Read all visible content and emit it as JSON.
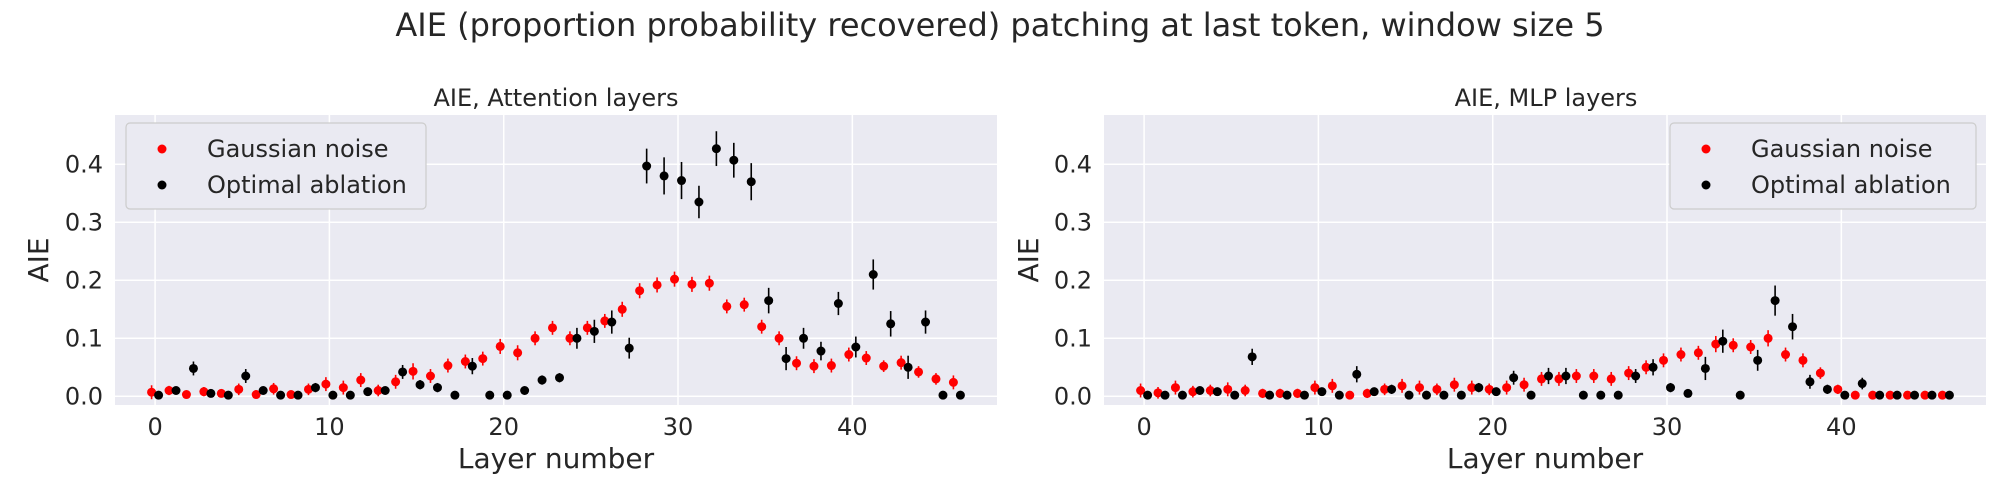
{
  "figure": {
    "suptitle": "AIE (proportion probability recovered) patching at last token, window size 5"
  },
  "colors": {
    "gaussian": "#ff0000",
    "optimal": "#000000",
    "background": "#eaeaf2",
    "grid": "#ffffff"
  },
  "chart_data": [
    {
      "type": "scatter",
      "title": "AIE, Attention layers",
      "xlabel": "Layer number",
      "ylabel": "AIE",
      "xlim": [
        -2.3,
        48.3
      ],
      "ylim": [
        -0.015,
        0.485
      ],
      "xticks": [
        "0",
        "10",
        "20",
        "30",
        "40"
      ],
      "yticks": [
        "0.0",
        "0.1",
        "0.2",
        "0.3",
        "0.4"
      ],
      "grid": true,
      "legend_position": "upper-left",
      "series": [
        {
          "name": "Gaussian noise",
          "color": "#ff0000",
          "x": [
            0,
            1,
            2,
            3,
            4,
            5,
            6,
            7,
            8,
            9,
            10,
            11,
            12,
            13,
            14,
            15,
            16,
            17,
            18,
            19,
            20,
            21,
            22,
            23,
            24,
            25,
            26,
            27,
            28,
            29,
            30,
            31,
            32,
            33,
            34,
            35,
            36,
            37,
            38,
            39,
            40,
            41,
            42,
            43,
            44,
            45,
            46
          ],
          "y": [
            0.007,
            0.01,
            0.003,
            0.008,
            0.005,
            0.012,
            0.003,
            0.013,
            0.003,
            0.012,
            0.021,
            0.015,
            0.028,
            0.01,
            0.025,
            0.043,
            0.035,
            0.053,
            0.06,
            0.065,
            0.086,
            0.075,
            0.1,
            0.118,
            0.1,
            0.118,
            0.13,
            0.15,
            0.182,
            0.192,
            0.202,
            0.193,
            0.195,
            0.155,
            0.158,
            0.12,
            0.1,
            0.057,
            0.052,
            0.053,
            0.072,
            0.066,
            0.052,
            0.058,
            0.042,
            0.03,
            0.024
          ],
          "err": [
            0.012,
            0.008,
            0.006,
            0.008,
            0.006,
            0.01,
            0.006,
            0.01,
            0.006,
            0.01,
            0.012,
            0.012,
            0.012,
            0.01,
            0.012,
            0.014,
            0.012,
            0.012,
            0.012,
            0.012,
            0.013,
            0.013,
            0.012,
            0.012,
            0.012,
            0.012,
            0.012,
            0.013,
            0.013,
            0.013,
            0.013,
            0.013,
            0.013,
            0.012,
            0.012,
            0.012,
            0.012,
            0.012,
            0.012,
            0.012,
            0.012,
            0.012,
            0.01,
            0.012,
            0.01,
            0.01,
            0.012
          ]
        },
        {
          "name": "Optimal ablation",
          "color": "#000000",
          "x": [
            0,
            1,
            2,
            3,
            4,
            5,
            6,
            7,
            8,
            9,
            10,
            11,
            12,
            13,
            14,
            15,
            16,
            17,
            18,
            19,
            20,
            21,
            22,
            23,
            24,
            25,
            26,
            27,
            28,
            29,
            30,
            31,
            32,
            33,
            34,
            35,
            36,
            37,
            38,
            39,
            40,
            41,
            42,
            43,
            44,
            45,
            46
          ],
          "y": [
            0.002,
            0.01,
            0.048,
            0.005,
            0.002,
            0.035,
            0.01,
            0.002,
            0.002,
            0.015,
            0.002,
            0.002,
            0.008,
            0.01,
            0.042,
            0.02,
            0.015,
            0.002,
            0.052,
            0.002,
            0.002,
            0.01,
            0.028,
            0.032,
            0.1,
            0.112,
            0.128,
            0.083,
            0.397,
            0.38,
            0.372,
            0.335,
            0.427,
            0.407,
            0.37,
            0.165,
            0.065,
            0.1,
            0.078,
            0.16,
            0.085,
            0.21,
            0.125,
            0.05,
            0.128,
            0.002,
            0.002
          ],
          "err": [
            0.005,
            0.006,
            0.012,
            0.006,
            0.004,
            0.012,
            0.006,
            0.004,
            0.004,
            0.008,
            0.004,
            0.004,
            0.006,
            0.006,
            0.012,
            0.008,
            0.008,
            0.004,
            0.014,
            0.004,
            0.004,
            0.006,
            0.008,
            0.008,
            0.018,
            0.02,
            0.02,
            0.018,
            0.03,
            0.032,
            0.032,
            0.028,
            0.03,
            0.03,
            0.032,
            0.022,
            0.02,
            0.018,
            0.016,
            0.02,
            0.018,
            0.026,
            0.022,
            0.02,
            0.02,
            0.004,
            0.004
          ]
        }
      ]
    },
    {
      "type": "scatter",
      "title": "AIE, MLP layers",
      "xlabel": "Layer number",
      "ylabel": "AIE",
      "xlim": [
        -2.3,
        48.3
      ],
      "ylim": [
        -0.015,
        0.485
      ],
      "xticks": [
        "0",
        "10",
        "20",
        "30",
        "40"
      ],
      "yticks": [
        "0.0",
        "0.1",
        "0.2",
        "0.3",
        "0.4"
      ],
      "grid": true,
      "legend_position": "upper-right",
      "series": [
        {
          "name": "Gaussian noise",
          "color": "#ff0000",
          "x": [
            0,
            1,
            2,
            3,
            4,
            5,
            6,
            7,
            8,
            9,
            10,
            11,
            12,
            13,
            14,
            15,
            16,
            17,
            18,
            19,
            20,
            21,
            22,
            23,
            24,
            25,
            26,
            27,
            28,
            29,
            30,
            31,
            32,
            33,
            34,
            35,
            36,
            37,
            38,
            39,
            40,
            41,
            42,
            43,
            44,
            45,
            46
          ],
          "y": [
            0.01,
            0.006,
            0.015,
            0.008,
            0.01,
            0.012,
            0.01,
            0.005,
            0.005,
            0.005,
            0.015,
            0.018,
            0.002,
            0.005,
            0.012,
            0.018,
            0.015,
            0.012,
            0.02,
            0.015,
            0.012,
            0.015,
            0.02,
            0.03,
            0.03,
            0.035,
            0.035,
            0.03,
            0.04,
            0.05,
            0.062,
            0.072,
            0.075,
            0.09,
            0.088,
            0.085,
            0.1,
            0.072,
            0.062,
            0.04,
            0.012,
            0.002,
            0.002,
            0.002,
            0.002,
            0.002,
            0.002
          ],
          "err": [
            0.012,
            0.01,
            0.012,
            0.01,
            0.01,
            0.012,
            0.01,
            0.008,
            0.008,
            0.008,
            0.012,
            0.012,
            0.006,
            0.008,
            0.01,
            0.012,
            0.012,
            0.01,
            0.012,
            0.012,
            0.01,
            0.012,
            0.012,
            0.012,
            0.012,
            0.012,
            0.012,
            0.012,
            0.012,
            0.012,
            0.012,
            0.012,
            0.012,
            0.014,
            0.012,
            0.012,
            0.014,
            0.012,
            0.012,
            0.01,
            0.008,
            0.004,
            0.004,
            0.004,
            0.004,
            0.004,
            0.004
          ]
        },
        {
          "name": "Optimal ablation",
          "color": "#000000",
          "x": [
            0,
            1,
            2,
            3,
            4,
            5,
            6,
            7,
            8,
            9,
            10,
            11,
            12,
            13,
            14,
            15,
            16,
            17,
            18,
            19,
            20,
            21,
            22,
            23,
            24,
            25,
            26,
            27,
            28,
            29,
            30,
            31,
            32,
            33,
            34,
            35,
            36,
            37,
            38,
            39,
            40,
            41,
            42,
            43,
            44,
            45,
            46
          ],
          "y": [
            0.002,
            0.002,
            0.002,
            0.01,
            0.008,
            0.002,
            0.068,
            0.002,
            0.002,
            0.002,
            0.008,
            0.002,
            0.038,
            0.008,
            0.012,
            0.002,
            0.002,
            0.002,
            0.002,
            0.015,
            0.008,
            0.032,
            0.002,
            0.035,
            0.035,
            0.002,
            0.002,
            0.002,
            0.035,
            0.05,
            0.015,
            0.005,
            0.048,
            0.095,
            0.002,
            0.062,
            0.165,
            0.12,
            0.025,
            0.012,
            0.002,
            0.022,
            0.002,
            0.002,
            0.002,
            0.002,
            0.002
          ],
          "err": [
            0.004,
            0.004,
            0.004,
            0.006,
            0.006,
            0.004,
            0.014,
            0.004,
            0.004,
            0.004,
            0.006,
            0.004,
            0.014,
            0.006,
            0.008,
            0.004,
            0.004,
            0.004,
            0.004,
            0.008,
            0.006,
            0.012,
            0.004,
            0.014,
            0.014,
            0.004,
            0.004,
            0.004,
            0.012,
            0.014,
            0.008,
            0.006,
            0.02,
            0.02,
            0.004,
            0.018,
            0.026,
            0.022,
            0.012,
            0.008,
            0.004,
            0.01,
            0.004,
            0.004,
            0.004,
            0.004,
            0.004
          ]
        }
      ]
    }
  ]
}
